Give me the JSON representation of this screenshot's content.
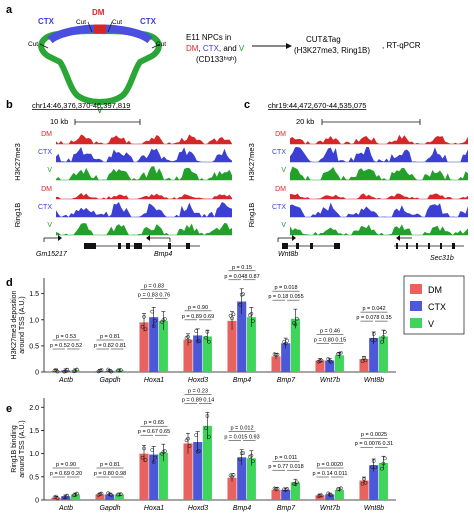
{
  "panel_a": {
    "label": "a",
    "regions": {
      "dm": "DM",
      "ctx": "CTX",
      "v": "V"
    },
    "cut_label": "Cut",
    "npc_text": {
      "line1": "E11 NPCs in",
      "line2_pre": "",
      "dm": "DM",
      "sep1": ", ",
      "ctx": "CTX",
      "sep2": ", and ",
      "v": "V",
      "line3": "(CD133ʰⁱᵍʰ)"
    },
    "assay": {
      "line1": "CUT&Tag",
      "line2": "(H3K27me3, Ring1B)",
      "alt": ", RT-qPCR"
    },
    "colors": {
      "dm": "#d62728",
      "ctx": "#3b3fd4",
      "v": "#22a02a"
    }
  },
  "panel_b": {
    "label": "b",
    "locus": "chr14:46,376,370-46,397,819",
    "scale": "10 kb",
    "tracks": [
      "DM",
      "CTX",
      "V",
      "DM",
      "CTX",
      "V"
    ],
    "groups": [
      "H3K27me3",
      "Ring1B"
    ],
    "genes": [
      "Gm15217",
      "Bmp4"
    ]
  },
  "panel_c": {
    "label": "c",
    "locus": "chr19:44,472,670-44,535,075",
    "scale": "20 kb",
    "tracks": [
      "DM",
      "CTX",
      "V",
      "DM",
      "CTX",
      "V"
    ],
    "groups": [
      "H3K27me3",
      "Ring1B"
    ],
    "genes": [
      "Wnt8b",
      "Sec31b"
    ]
  },
  "chart_data": [
    {
      "panel": "d",
      "type": "bar",
      "ylabel": "H3K27me3 deposition around TSS (A.U.)",
      "ylim": [
        0,
        1.8
      ],
      "yticks": [
        0,
        0.5,
        1.0,
        1.5
      ],
      "categories": [
        "Actb",
        "Gapdh",
        "Hoxa1",
        "Hoxd3",
        "Bmp4",
        "Bmp7",
        "Wnt7b",
        "Wnt8b"
      ],
      "series": [
        {
          "name": "DM",
          "color": "#e8625e",
          "values": [
            0.02,
            0.02,
            0.95,
            0.62,
            0.98,
            0.3,
            0.22,
            0.25
          ]
        },
        {
          "name": "CTX",
          "color": "#4d58d8",
          "values": [
            0.03,
            0.02,
            1.05,
            0.7,
            1.35,
            0.55,
            0.22,
            0.65
          ]
        },
        {
          "name": "V",
          "color": "#3fd45a",
          "values": [
            0.03,
            0.03,
            0.98,
            0.68,
            1.05,
            1.02,
            0.32,
            0.68
          ]
        }
      ],
      "pvalues": [
        {
          "top": "0.53",
          "bottom": [
            "0.52",
            "0.52"
          ]
        },
        {
          "top": "0.81",
          "bottom": [
            "0.82",
            "0.81"
          ]
        },
        {
          "top": "0.83",
          "bottom": [
            "0.83",
            "0.76"
          ]
        },
        {
          "top": "0.90",
          "bottom": [
            "0.89",
            "0.69"
          ]
        },
        {
          "top": "0.15",
          "bottom": [
            "0.048",
            "0.87"
          ]
        },
        {
          "top": "0.018",
          "bottom": [
            "0.18",
            "0.055"
          ]
        },
        {
          "top": "0.46",
          "bottom": [
            "0.80",
            "0.15"
          ]
        },
        {
          "top": "0.042",
          "bottom": [
            "0.078",
            "0.35"
          ]
        }
      ],
      "legend": [
        "DM",
        "CTX",
        "V"
      ]
    },
    {
      "panel": "e",
      "type": "bar",
      "ylabel": "Ring1B binding around TSS (A.U.)",
      "ylim": [
        0,
        2.2
      ],
      "yticks": [
        0,
        0.5,
        1.0,
        1.5,
        2.0
      ],
      "categories": [
        "Actb",
        "Gapdh",
        "Hoxa1",
        "Hoxd3",
        "Bmp4",
        "Bmp7",
        "Wnt7b",
        "Wnt8b"
      ],
      "series": [
        {
          "name": "DM",
          "color": "#e8625e",
          "values": [
            0.05,
            0.12,
            1.0,
            1.22,
            0.48,
            0.22,
            0.1,
            0.42
          ]
        },
        {
          "name": "CTX",
          "color": "#4d58d8",
          "values": [
            0.08,
            0.12,
            0.98,
            1.25,
            0.92,
            0.22,
            0.12,
            0.75
          ]
        },
        {
          "name": "V",
          "color": "#3fd45a",
          "values": [
            0.12,
            0.12,
            1.02,
            1.6,
            0.9,
            0.38,
            0.22,
            0.8
          ]
        }
      ],
      "pvalues": [
        {
          "top": "0.90",
          "bottom": [
            "0.69",
            "0.20"
          ]
        },
        {
          "top": "0.81",
          "bottom": [
            "0.80",
            "0.98"
          ]
        },
        {
          "top": "0.65",
          "bottom": [
            "0.67",
            "0.65"
          ]
        },
        {
          "top": "0.23",
          "bottom": [
            "0.89",
            "0.14"
          ]
        },
        {
          "top": "0.012",
          "bottom": [
            "0.015",
            "0.93"
          ]
        },
        {
          "top": "0.011",
          "bottom": [
            "0.77",
            "0.018"
          ]
        },
        {
          "top": "0.0020",
          "bottom": [
            "0.14",
            "0.011"
          ]
        },
        {
          "top": "0.0025",
          "bottom": [
            "0.0076",
            "0.31"
          ]
        }
      ]
    }
  ]
}
